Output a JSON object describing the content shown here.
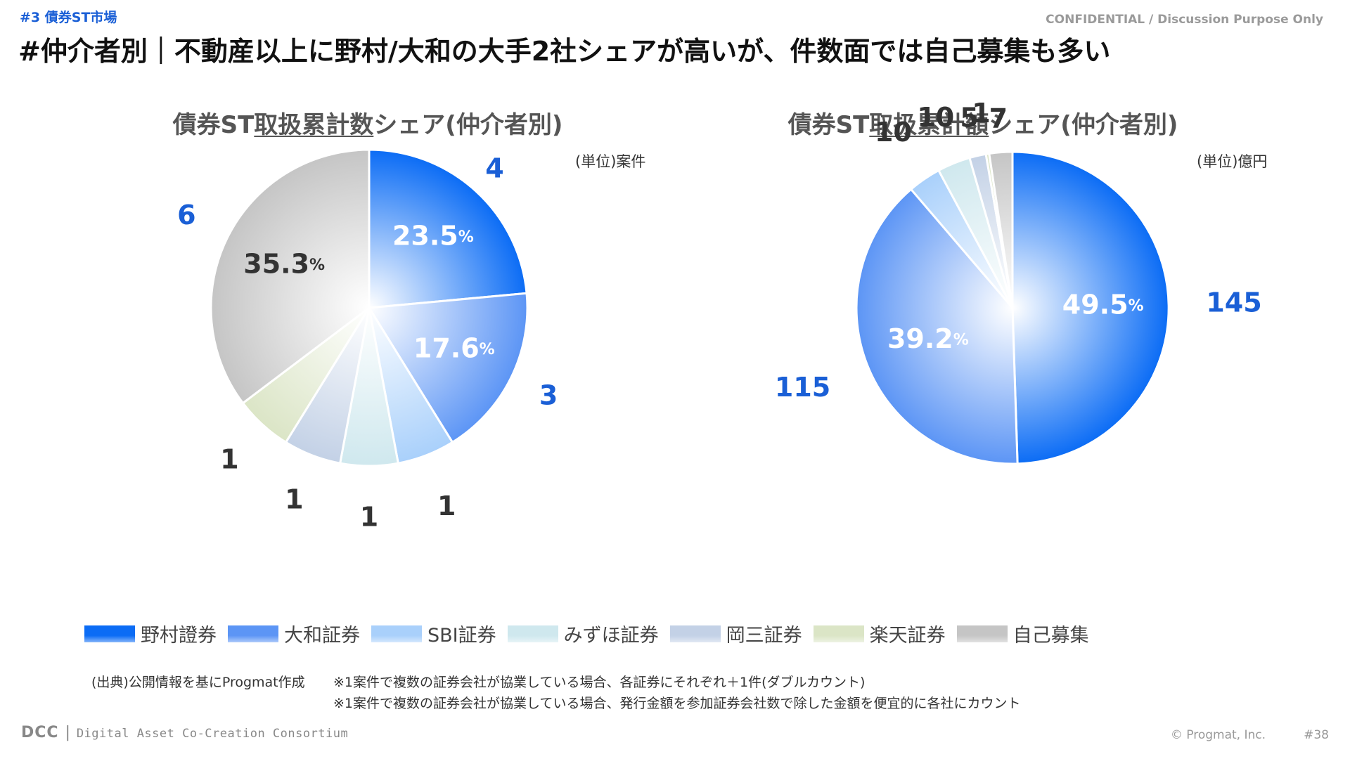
{
  "header": {
    "section_tag": "#3  債券ST市場",
    "confidential": "CONFIDENTIAL / Discussion Purpose Only",
    "title": "#仲介者別｜不動産以上に野村/大和の大手2社シェアが高いが、件数面では自己募集も多い"
  },
  "colors": {
    "nomura": "#0b6cf5",
    "daiwa": "#5c95f5",
    "sbi": "#a9d0fb",
    "mizuho": "#cfe8ee",
    "okasan": "#c3d1e6",
    "rakuten": "#dbe5c6",
    "self": "#c5c5c5",
    "blue_text": "#1a5fd6",
    "gray_text": "#333333"
  },
  "chart_data": [
    {
      "type": "pie",
      "title_pre": "債券ST",
      "title_underlined": "取扱累計数",
      "title_post": "シェア(仲介者別)",
      "unit": "(単位)案件",
      "categories": [
        "野村證券",
        "大和証券",
        "SBI証券",
        "みずほ証券",
        "岡三証券",
        "楽天証券",
        "自己募集"
      ],
      "values": [
        4,
        3,
        1,
        1,
        1,
        1,
        6
      ],
      "value_labels": [
        "4",
        "3",
        "1",
        "1",
        "1",
        "1",
        "6"
      ],
      "percent_labels": [
        {
          "num": "23.5",
          "sym": "%"
        },
        {
          "num": "17.6",
          "sym": "%"
        },
        null,
        null,
        null,
        null,
        {
          "num": "35.3",
          "sym": "%"
        }
      ]
    },
    {
      "type": "pie",
      "title_pre": "債券ST",
      "title_underlined": "取扱累計額",
      "title_post": "シェア(仲介者別)",
      "unit": "(単位)億円",
      "categories": [
        "野村證券",
        "大和証券",
        "SBI証券",
        "みずほ証券",
        "岡三証券",
        "楽天証券",
        "自己募集"
      ],
      "values": [
        145,
        115,
        10,
        10,
        5,
        1,
        7
      ],
      "value_labels": [
        "145",
        "115",
        "10",
        "10",
        "5",
        "1",
        "7"
      ],
      "percent_labels": [
        {
          "num": "49.5",
          "sym": "%"
        },
        {
          "num": "39.2",
          "sym": "%"
        },
        null,
        null,
        null,
        null,
        null
      ]
    }
  ],
  "legend": {
    "items": [
      {
        "label": "野村證券",
        "key": "nomura"
      },
      {
        "label": "大和証券",
        "key": "daiwa"
      },
      {
        "label": "SBI証券",
        "key": "sbi"
      },
      {
        "label": "みずほ証券",
        "key": "mizuho"
      },
      {
        "label": "岡三証券",
        "key": "okasan"
      },
      {
        "label": "楽天証券",
        "key": "rakuten"
      },
      {
        "label": "自己募集",
        "key": "self"
      }
    ]
  },
  "notes": {
    "source": "(出典)公開情報を基にProgmat作成",
    "note1": "※1案件で複数の証券会社が協業している場合、各証券にそれぞれ＋1件(ダブルカウント)",
    "note2": "※1案件で複数の証券会社が協業している場合、発行金額を参加証券会社数で除した金額を便宜的に各社にカウント"
  },
  "footer": {
    "logo": "DCC",
    "consortium": "Digital Asset Co-Creation Consortium",
    "copyright": "© Progmat, Inc.",
    "page": "#38"
  }
}
